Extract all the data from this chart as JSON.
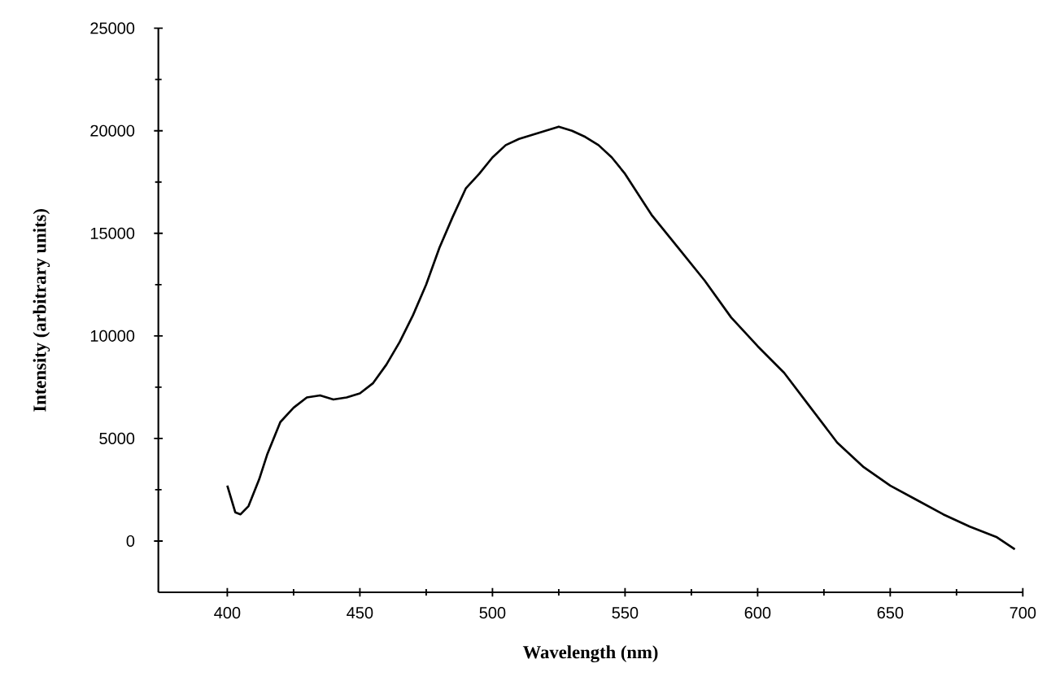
{
  "chart_data": {
    "type": "line",
    "xlabel": "Wavelength (nm)",
    "ylabel": "Intensity (arbitrary units)",
    "color": "#000000",
    "marker": "none",
    "line_style": "solid",
    "grid": false,
    "x": [
      400,
      403,
      405,
      408,
      412,
      415,
      420,
      425,
      430,
      435,
      440,
      445,
      450,
      455,
      460,
      465,
      470,
      475,
      480,
      485,
      490,
      495,
      500,
      505,
      510,
      515,
      520,
      525,
      530,
      535,
      540,
      545,
      550,
      560,
      570,
      580,
      590,
      600,
      610,
      620,
      630,
      640,
      650,
      660,
      670,
      680,
      690,
      697
    ],
    "values": [
      2700,
      1400,
      1300,
      1700,
      3000,
      4200,
      5800,
      6500,
      7000,
      7100,
      6900,
      7000,
      7200,
      7700,
      8600,
      9700,
      11000,
      12500,
      14300,
      15800,
      17200,
      17900,
      18700,
      19300,
      19600,
      19800,
      20000,
      20200,
      20000,
      19700,
      19300,
      18700,
      17900,
      15900,
      14300,
      12700,
      10900,
      9500,
      8200,
      6500,
      4800,
      3600,
      2700,
      2000,
      1300,
      700,
      200,
      -400
    ],
    "xlim": [
      374,
      700
    ],
    "ylim": [
      -2500,
      25000
    ],
    "xticks": [
      400,
      450,
      500,
      550,
      600,
      650,
      700
    ],
    "yticks": [
      0,
      5000,
      10000,
      15000,
      20000,
      25000
    ]
  }
}
